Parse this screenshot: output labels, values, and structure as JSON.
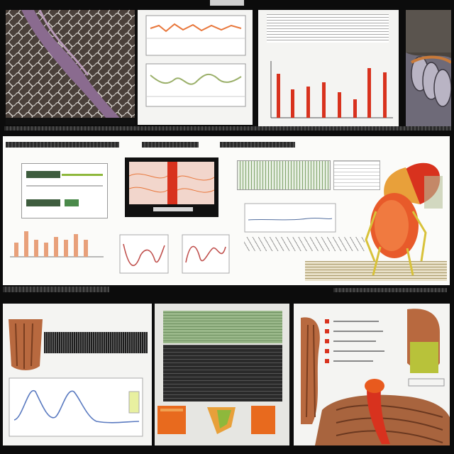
{
  "colors": {
    "frame": "#0c0c0c",
    "panel": "#f4f4f2",
    "accent_red": "#d8321e",
    "accent_orange": "#e8763a",
    "tissue_purple": "#8a6b8f",
    "muscle_brown": "#b8693f",
    "moss_green": "#8eb83c",
    "grid_green": "#7fa36a"
  },
  "icons": [
    "micrograph-image",
    "muscle-3d-render",
    "insect-3d-render",
    "tissue-cross-section"
  ]
}
